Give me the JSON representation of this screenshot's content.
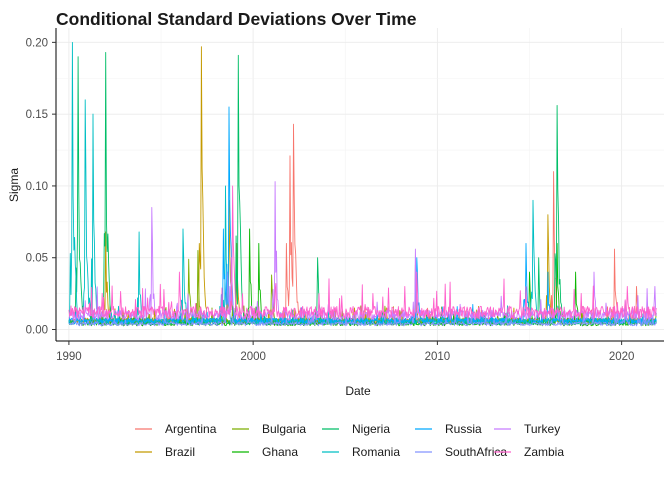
{
  "chart_data": {
    "type": "line",
    "title": "Conditional Standard Deviations Over Time",
    "xlabel": "Date",
    "ylabel": "Sigma",
    "xlim": [
      1989.3,
      2022.3
    ],
    "ylim": [
      -0.008,
      0.21
    ],
    "xticks": [
      1990,
      2000,
      2010,
      2020
    ],
    "xtick_labels": [
      "1990",
      "2000",
      "2010",
      "2020"
    ],
    "yticks": [
      0.0,
      0.05,
      0.1,
      0.15,
      0.2
    ],
    "ytick_labels": [
      "0.00",
      "0.05",
      "0.10",
      "0.15",
      "0.20"
    ],
    "grid": true,
    "legend_position": "bottom",
    "series": [
      {
        "name": "Argentina",
        "color": "#F8766D",
        "start": 1990.0,
        "base": 0.006,
        "spikes": [
          [
            2002.0,
            0.121
          ],
          [
            2002.2,
            0.143
          ],
          [
            2001.8,
            0.06
          ],
          [
            2016.3,
            0.11
          ],
          [
            2019.6,
            0.056
          ],
          [
            2020.8,
            0.03
          ]
        ]
      },
      {
        "name": "Brazil",
        "color": "#C49A00",
        "start": 1990.0,
        "base": 0.006,
        "spikes": [
          [
            1992.0,
            0.068
          ],
          [
            1997.2,
            0.197
          ],
          [
            1998.7,
            0.09
          ],
          [
            1999.1,
            0.06
          ],
          [
            2008.8,
            0.045
          ],
          [
            2016.0,
            0.08
          ]
        ]
      },
      {
        "name": "Bulgaria",
        "color": "#7CAE00",
        "start": 1991.0,
        "base": 0.006,
        "spikes": [
          [
            1996.5,
            0.049
          ],
          [
            1997.0,
            0.055
          ],
          [
            2001.0,
            0.038
          ]
        ]
      },
      {
        "name": "Ghana",
        "color": "#0CB702",
        "start": 1990.5,
        "base": 0.004,
        "spikes": [
          [
            1999.8,
            0.07
          ],
          [
            2000.3,
            0.06
          ],
          [
            2015.0,
            0.04
          ],
          [
            2016.5,
            0.06
          ],
          [
            2017.5,
            0.04
          ]
        ]
      },
      {
        "name": "Nigeria",
        "color": "#00BE67",
        "start": 1990.0,
        "base": 0.005,
        "spikes": [
          [
            1990.5,
            0.19
          ],
          [
            1992.0,
            0.193
          ],
          [
            1999.2,
            0.191
          ],
          [
            2016.5,
            0.156
          ],
          [
            2003.5,
            0.05
          ],
          [
            2015.5,
            0.05
          ]
        ]
      },
      {
        "name": "Romania",
        "color": "#00BFC4",
        "start": 1990.0,
        "base": 0.006,
        "spikes": [
          [
            1990.2,
            0.2
          ],
          [
            1990.9,
            0.16
          ],
          [
            1991.3,
            0.15
          ],
          [
            1993.8,
            0.068
          ],
          [
            1996.2,
            0.07
          ],
          [
            1998.5,
            0.1
          ],
          [
            2015.2,
            0.09
          ]
        ]
      },
      {
        "name": "Russia",
        "color": "#00A9FF",
        "start": 1990.0,
        "base": 0.006,
        "spikes": [
          [
            1998.7,
            0.155
          ],
          [
            1998.4,
            0.07
          ],
          [
            2008.9,
            0.05
          ],
          [
            2014.8,
            0.06
          ],
          [
            2016.0,
            0.04
          ]
        ]
      },
      {
        "name": "SouthAfrica",
        "color": "#8494FF",
        "start": 1990.0,
        "base": 0.004,
        "spikes": [
          [
            1998.6,
            0.04
          ],
          [
            2008.8,
            0.035
          ],
          [
            2020.2,
            0.02
          ]
        ]
      },
      {
        "name": "Turkey",
        "color": "#C77CFF",
        "start": 1990.0,
        "base": 0.01,
        "spikes": [
          [
            1994.5,
            0.085
          ],
          [
            2001.2,
            0.103
          ],
          [
            1998.8,
            0.05
          ],
          [
            2008.8,
            0.056
          ],
          [
            2018.5,
            0.04
          ],
          [
            2021.8,
            0.03
          ]
        ]
      },
      {
        "name": "Zambia",
        "color": "#FF61CC",
        "start": 1990.0,
        "base": 0.012,
        "spikes": [
          [
            1998.9,
            0.1
          ],
          [
            1996.0,
            0.04
          ],
          [
            2008.9,
            0.04
          ],
          [
            2020.3,
            0.03
          ]
        ]
      }
    ]
  }
}
